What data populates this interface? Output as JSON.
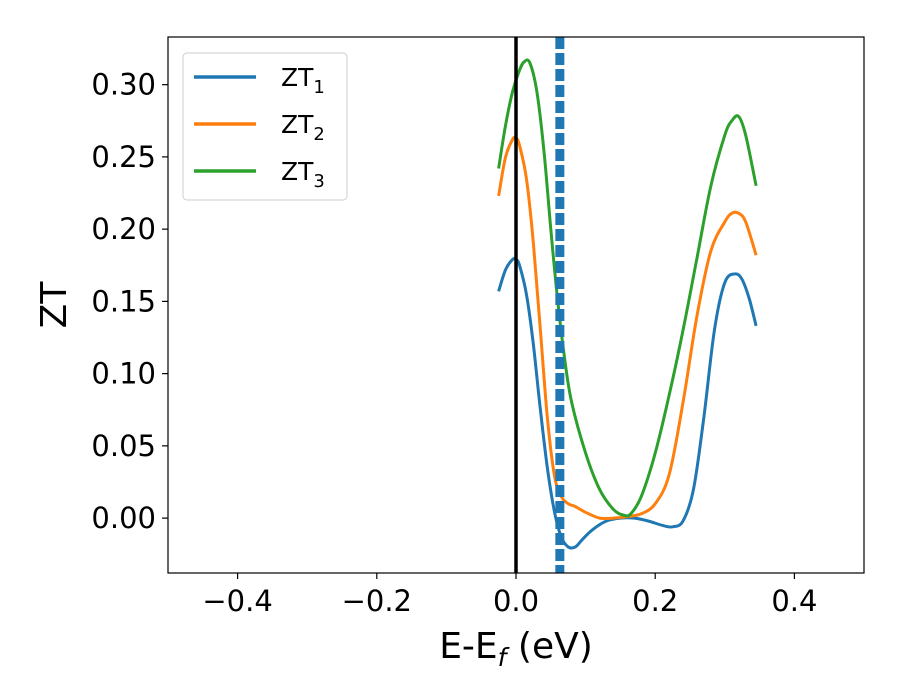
{
  "chart_data": {
    "type": "line",
    "xlabel": "E-E",
    "xlabel_sub": "f",
    "xlabel_unit": " (eV)",
    "ylabel": "ZT",
    "xlim": [
      -0.5,
      0.5
    ],
    "ylim": [
      -0.038,
      0.333
    ],
    "xticks": [
      -0.4,
      -0.2,
      0.0,
      0.2,
      0.4
    ],
    "xtick_labels": [
      "−0.4",
      "−0.2",
      "0.0",
      "0.2",
      "0.4"
    ],
    "yticks": [
      0.0,
      0.05,
      0.1,
      0.15,
      0.2,
      0.25,
      0.3
    ],
    "ytick_labels": [
      "0.00",
      "0.05",
      "0.10",
      "0.15",
      "0.20",
      "0.25",
      "0.30"
    ],
    "grid": false,
    "legend_position": "top-left",
    "reference_lines": [
      {
        "orientation": "vertical",
        "x": 0.0,
        "style": "solid",
        "color": "#000000"
      },
      {
        "orientation": "vertical",
        "x": 0.063,
        "style": "dashed",
        "color": "#1f77b4"
      }
    ],
    "series": [
      {
        "name": "ZT",
        "subscript": "1",
        "color": "#1f77b4",
        "x": [
          -0.025,
          -0.015,
          -0.005,
          0.0,
          0.005,
          0.015,
          0.025,
          0.035,
          0.045,
          0.055,
          0.065,
          0.075,
          0.085,
          0.095,
          0.11,
          0.13,
          0.15,
          0.17,
          0.19,
          0.21,
          0.225,
          0.24,
          0.255,
          0.27,
          0.285,
          0.3,
          0.315,
          0.325,
          0.335,
          0.345
        ],
        "y": [
          0.157,
          0.172,
          0.179,
          0.179,
          0.175,
          0.155,
          0.12,
          0.075,
          0.035,
          0.005,
          -0.013,
          -0.02,
          -0.02,
          -0.015,
          -0.008,
          -0.002,
          0.0,
          0.0,
          -0.002,
          -0.005,
          -0.006,
          -0.002,
          0.02,
          0.07,
          0.13,
          0.163,
          0.169,
          0.165,
          0.152,
          0.133
        ]
      },
      {
        "name": "ZT",
        "subscript": "2",
        "color": "#ff7f0e",
        "x": [
          -0.025,
          -0.015,
          -0.005,
          0.0,
          0.005,
          0.015,
          0.025,
          0.035,
          0.045,
          0.055,
          0.065,
          0.075,
          0.085,
          0.1,
          0.12,
          0.14,
          0.16,
          0.18,
          0.2,
          0.22,
          0.24,
          0.26,
          0.28,
          0.3,
          0.31,
          0.32,
          0.33,
          0.345
        ],
        "y": [
          0.223,
          0.25,
          0.262,
          0.263,
          0.258,
          0.235,
          0.19,
          0.13,
          0.07,
          0.03,
          0.015,
          0.01,
          0.008,
          0.004,
          0.0,
          0.0,
          0.001,
          0.003,
          0.01,
          0.03,
          0.08,
          0.14,
          0.185,
          0.205,
          0.211,
          0.211,
          0.205,
          0.182
        ]
      },
      {
        "name": "ZT",
        "subscript": "3",
        "color": "#2ca02c",
        "x": [
          -0.025,
          -0.015,
          -0.005,
          0.005,
          0.012,
          0.02,
          0.03,
          0.04,
          0.05,
          0.06,
          0.07,
          0.08,
          0.1,
          0.12,
          0.14,
          0.155,
          0.165,
          0.18,
          0.2,
          0.22,
          0.24,
          0.26,
          0.28,
          0.3,
          0.31,
          0.32,
          0.33,
          0.345
        ],
        "y": [
          0.242,
          0.272,
          0.295,
          0.31,
          0.316,
          0.315,
          0.295,
          0.255,
          0.2,
          0.15,
          0.11,
          0.08,
          0.045,
          0.02,
          0.006,
          0.002,
          0.003,
          0.015,
          0.045,
          0.085,
          0.13,
          0.18,
          0.23,
          0.265,
          0.275,
          0.278,
          0.265,
          0.23
        ]
      }
    ]
  }
}
